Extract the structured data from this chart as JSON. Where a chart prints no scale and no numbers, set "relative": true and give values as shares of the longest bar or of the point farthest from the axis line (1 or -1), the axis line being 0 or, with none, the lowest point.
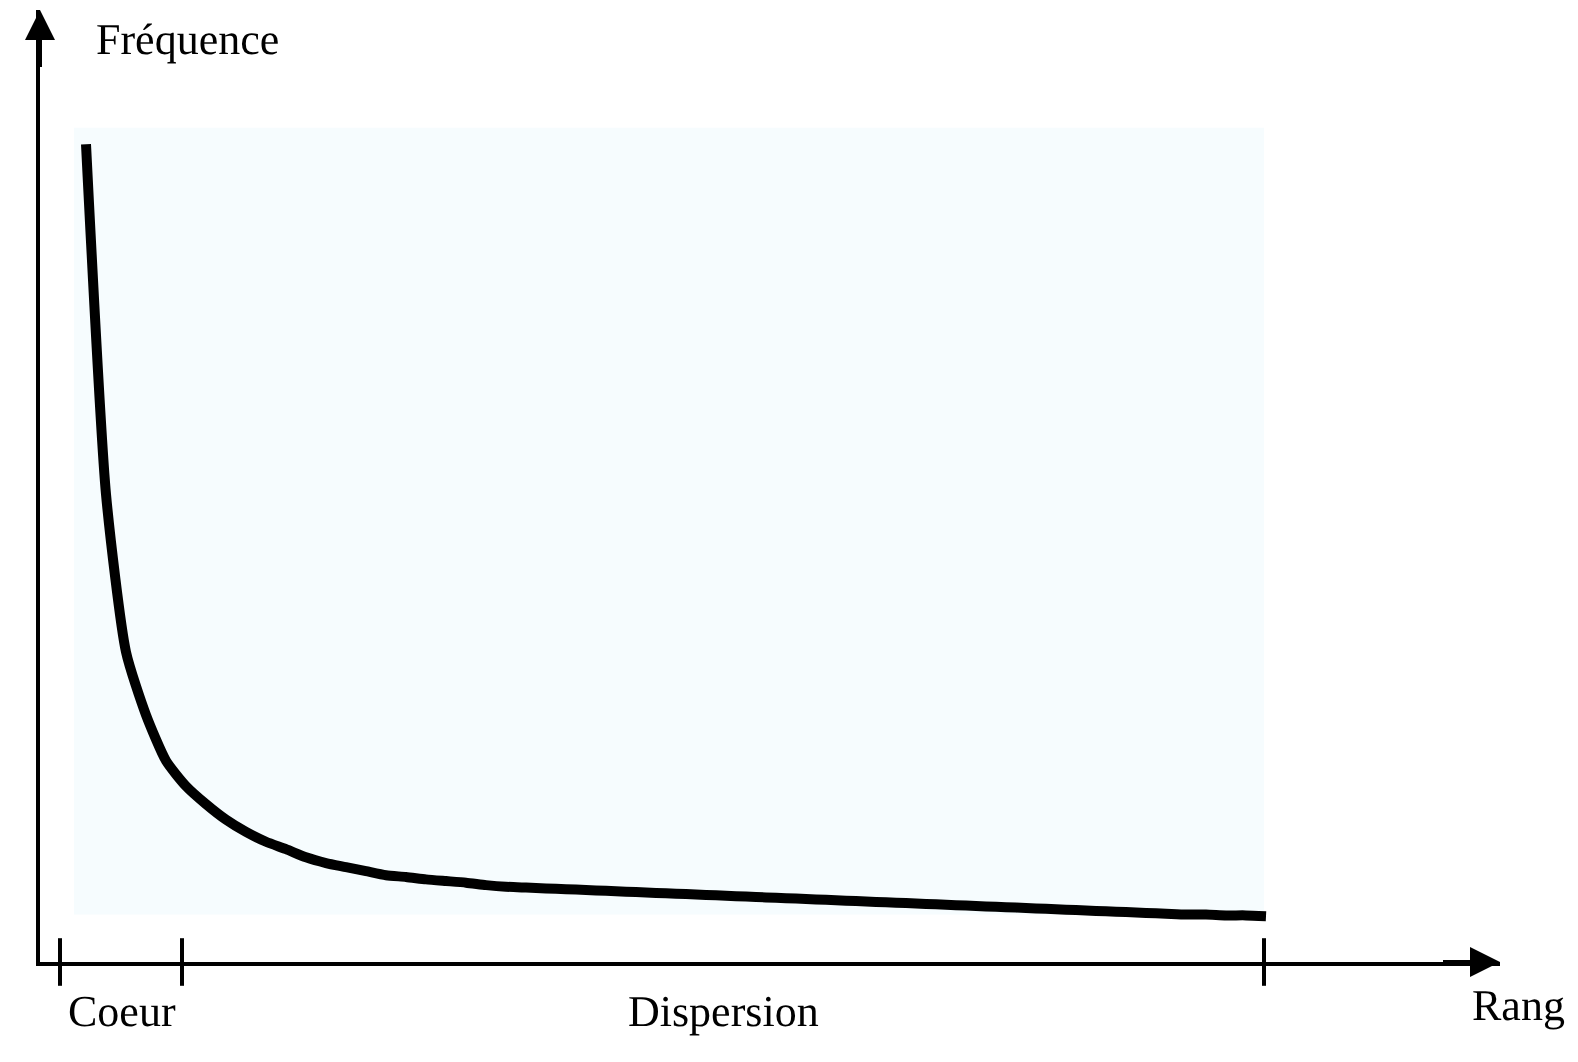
{
  "chart_data": {
    "type": "line",
    "relative": true,
    "xlabel": "Rang",
    "ylabel": "Fréquence",
    "categories": [
      null,
      null,
      null,
      null,
      null,
      null,
      null,
      null,
      null,
      null,
      null,
      null,
      null,
      null,
      null,
      null,
      null,
      null,
      null,
      null,
      null,
      null,
      null,
      null,
      null,
      null,
      null,
      null,
      null,
      null,
      null,
      null,
      null,
      null,
      null,
      null,
      null,
      null,
      null,
      null,
      null,
      null,
      null,
      null,
      null,
      null,
      null,
      null,
      null,
      null,
      null,
      null,
      null,
      null,
      null,
      null,
      null,
      null,
      null,
      null
    ],
    "series": [
      {
        "color": "#000000",
        "values": [
          1.0,
          0.572,
          0.379,
          0.302,
          0.246,
          0.215,
          0.193,
          0.174,
          0.159,
          0.147,
          0.138,
          0.128,
          0.121,
          0.116,
          0.111,
          0.106,
          0.104,
          0.101,
          0.099,
          0.097,
          0.094,
          0.092,
          0.091,
          0.09,
          0.089,
          0.088,
          0.087,
          0.086,
          0.085,
          0.084,
          0.083,
          0.082,
          0.081,
          0.08,
          0.079,
          0.078,
          0.077,
          0.076,
          0.075,
          0.074,
          0.073,
          0.072,
          0.071,
          0.07,
          0.069,
          0.068,
          0.067,
          0.066,
          0.065,
          0.064,
          0.063,
          0.062,
          0.061,
          0.06,
          0.059,
          0.058,
          0.058,
          0.057,
          0.057,
          0.056
        ]
      }
    ],
    "annotations": [
      "Coeur",
      "Dispersion"
    ],
    "grid": false,
    "marker": "none",
    "line_style": "solid"
  }
}
